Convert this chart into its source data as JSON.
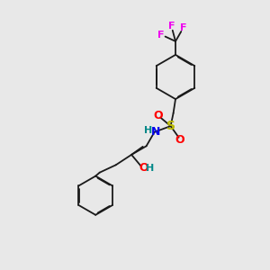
{
  "background_color": "#e8e8e8",
  "bond_color": "#1a1a1a",
  "atom_colors": {
    "F": "#ee00ee",
    "S": "#bbbb00",
    "O": "#ff0000",
    "N": "#0000ee",
    "H": "#008888",
    "C": "#1a1a1a"
  },
  "figsize": [
    3.0,
    3.0
  ],
  "dpi": 100,
  "lw": 1.3,
  "double_sep": 0.025
}
